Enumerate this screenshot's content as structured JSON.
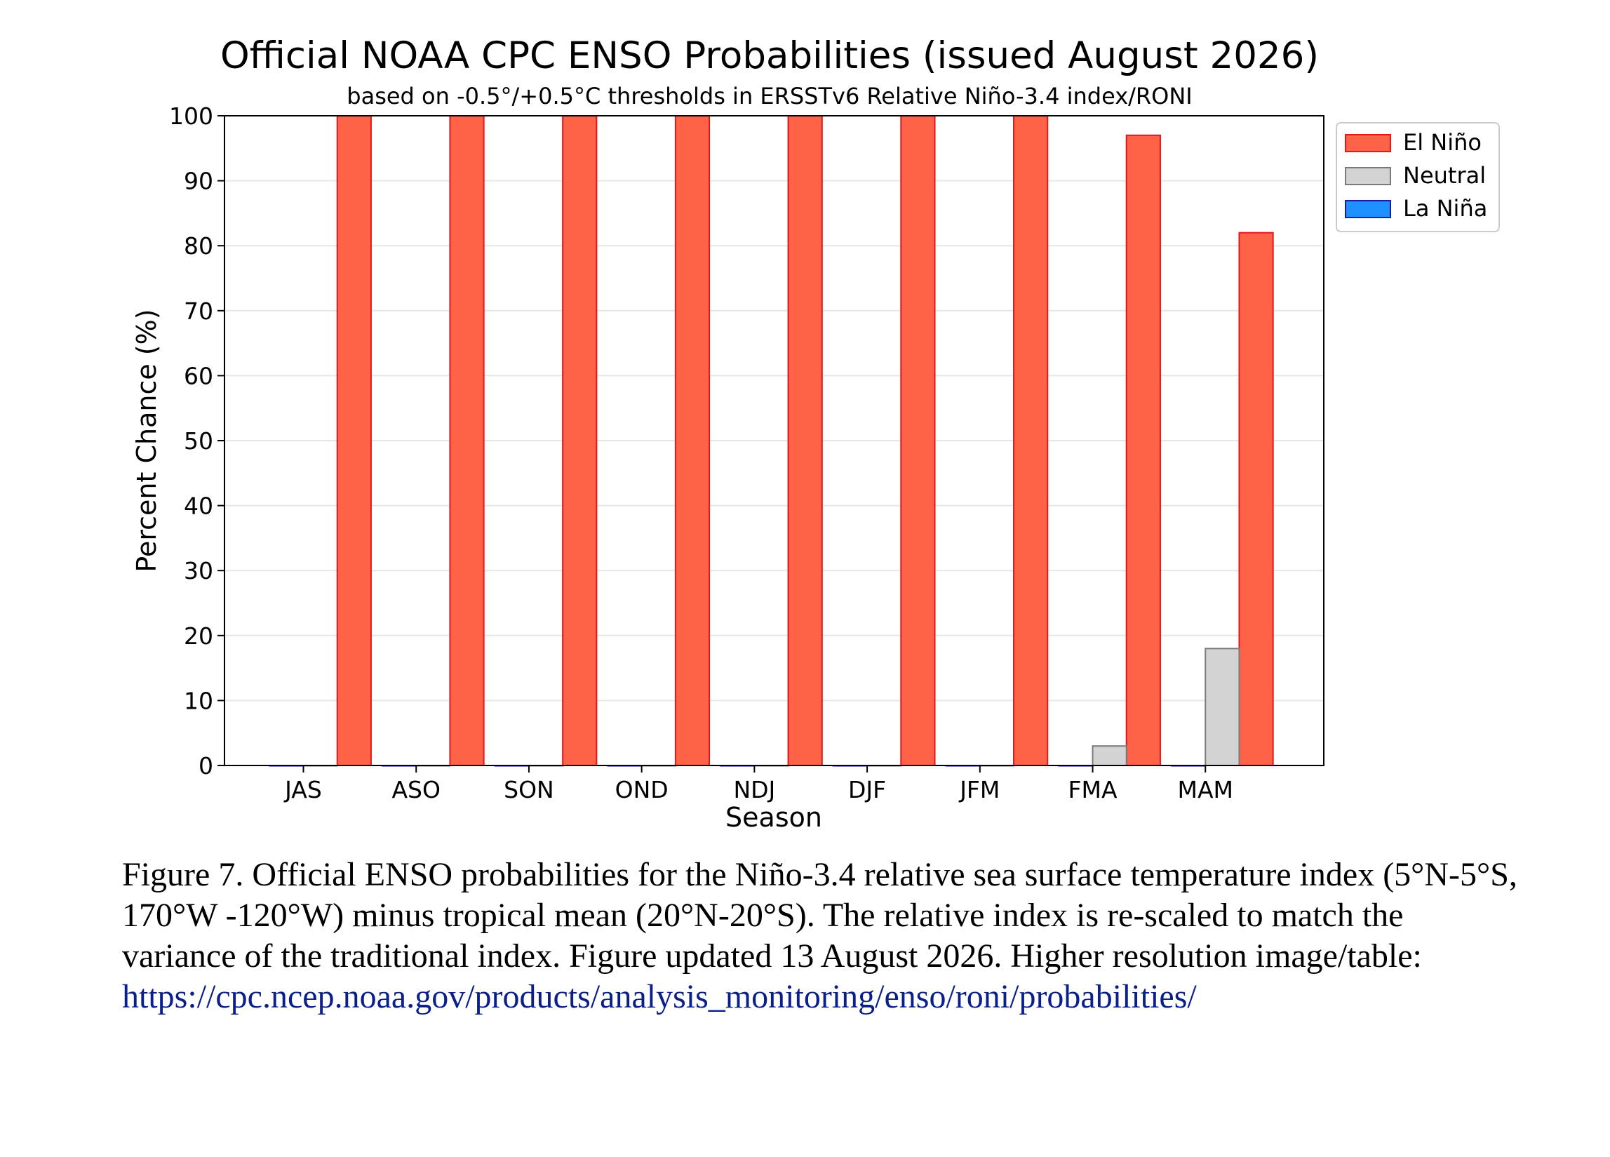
{
  "colors": {
    "el_nino": "#ff6347",
    "el_nino_edge": "#e8151b",
    "neutral": "#d3d3d3",
    "neutral_edge": "#7a7a7a",
    "la_nina": "#1e90ff",
    "la_nina_edge": "#1a1aa6",
    "grid": "#e6e6e6",
    "link": "#0b1f8a"
  },
  "chart_data": {
    "type": "bar",
    "title": "Official NOAA CPC ENSO Probabilities (issued August 2026)",
    "subtitle": "based on -0.5°/+0.5°C thresholds in ERSSTv6 Relative Niño-3.4 index/RONI",
    "xlabel": "Season",
    "ylabel": "Percent Chance (%)",
    "ylim": [
      0,
      100
    ],
    "yticks": [
      0,
      10,
      20,
      30,
      40,
      50,
      60,
      70,
      80,
      90,
      100
    ],
    "grid": true,
    "legend_position": "outside-top-right",
    "categories": [
      "JAS",
      "ASO",
      "SON",
      "OND",
      "NDJ",
      "DJF",
      "JFM",
      "FMA",
      "MAM"
    ],
    "series": [
      {
        "name": "El Niño",
        "values": [
          100,
          100,
          100,
          100,
          100,
          100,
          100,
          97,
          82
        ]
      },
      {
        "name": "Neutral",
        "values": [
          0,
          0,
          0,
          0,
          0,
          0,
          0,
          3,
          18
        ]
      },
      {
        "name": "La Niña",
        "values": [
          0,
          0,
          0,
          0,
          0,
          0,
          0,
          0,
          0
        ]
      }
    ]
  },
  "caption": {
    "text": "Figure 7. Official ENSO probabilities for the Niño-3.4 relative sea surface temperature index (5°N-5°S, 170°W -120°W) minus tropical mean (20°N-20°S). The relative index is re-scaled to match the variance of the traditional index. Figure updated 13 August 2026. Higher resolution image/table: ",
    "link": "https://cpc.ncep.noaa.gov/products/analysis_monitoring/enso/roni/probabilities/"
  }
}
